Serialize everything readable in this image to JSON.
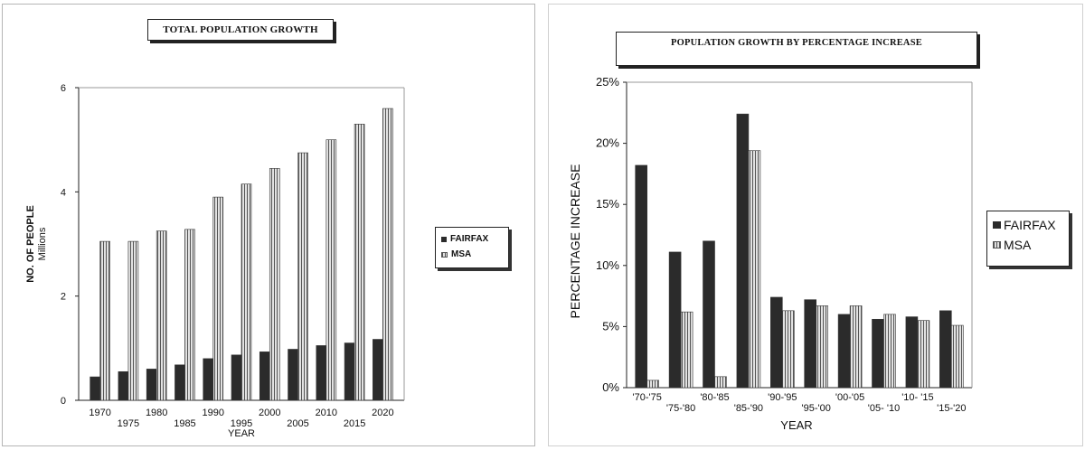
{
  "chart_data": [
    {
      "type": "bar",
      "title": "TOTAL POPULATION GROWTH",
      "xlabel": "YEAR",
      "ylabel": "NO. OF PEOPLE",
      "ylabel_sub": "Millions",
      "ylim": [
        0,
        6
      ],
      "yticks": [
        "0",
        "2",
        "4",
        "6"
      ],
      "categories": [
        "1970",
        "1975",
        "1980",
        "1985",
        "1990",
        "1995",
        "2000",
        "2005",
        "2010",
        "2015",
        "2020"
      ],
      "series": [
        {
          "name": "FAIRFAX",
          "values": [
            0.45,
            0.55,
            0.6,
            0.68,
            0.8,
            0.87,
            0.93,
            0.98,
            1.05,
            1.1,
            1.17
          ]
        },
        {
          "name": "MSA",
          "values": [
            3.05,
            3.05,
            3.25,
            3.28,
            3.9,
            4.15,
            4.45,
            4.75,
            5.0,
            5.3,
            5.6
          ]
        }
      ],
      "legend_position": "right",
      "grid": false
    },
    {
      "type": "bar",
      "title": "POPULATION   GROWTH   BY PERCENTAGE INCREASE",
      "xlabel": "YEAR",
      "ylabel": "PERCENTAGE  INCREASE",
      "ylim": [
        0,
        25
      ],
      "yticks": [
        "0%",
        "5%",
        "10%",
        "15%",
        "20%",
        "25%"
      ],
      "categories": [
        "'70-'75",
        "'75-'80",
        "'80-'85",
        "'85-'90",
        "'90-'95",
        "'95-'00",
        "'00-'05",
        "'05- '10",
        "'10- '15",
        "'15-'20"
      ],
      "series": [
        {
          "name": "FAIRFAX",
          "values": [
            18.2,
            11.1,
            12.0,
            22.4,
            7.4,
            7.2,
            6.0,
            5.6,
            5.8,
            6.3
          ]
        },
        {
          "name": "MSA",
          "values": [
            0.6,
            6.2,
            0.9,
            19.4,
            6.3,
            6.7,
            6.7,
            6.0,
            5.5,
            5.1
          ]
        }
      ],
      "legend_position": "right",
      "grid": false
    }
  ],
  "colors": {
    "fairfax": "#2b2b2b",
    "msa_fill": "#e2e2e2",
    "msa_stripe": "#555555"
  }
}
